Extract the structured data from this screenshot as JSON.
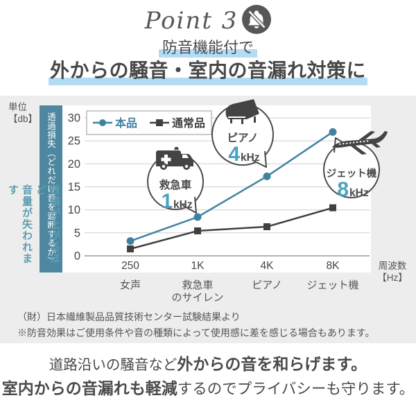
{
  "point_label": "Point 3",
  "header": {
    "subtitle": "防音機能付で",
    "title": "外からの騒音・室内の音漏れ対策に"
  },
  "axis_unit": {
    "line1": "単位",
    "line2": "【db】"
  },
  "ybar_label": "透過損失（どれだけ音を遮断するか）",
  "left_note": {
    "line1": "数値が上がるほど",
    "line2": "音量が失われます"
  },
  "freq_label": {
    "line1": "周波数",
    "line2": "【Hz】"
  },
  "chart_data": {
    "type": "line",
    "title": "",
    "xlabel": "周波数【Hz】",
    "ylabel": "透過損失【db】",
    "x": [
      "250",
      "1K",
      "4K",
      "8K"
    ],
    "x_categories": [
      [
        "女声"
      ],
      [
        "救急車",
        "のサイレン"
      ],
      [
        "ピアノ"
      ],
      [
        "ジェット機"
      ]
    ],
    "yticks": [
      0,
      5,
      10,
      15,
      20,
      25,
      30
    ],
    "ylim": [
      0,
      30
    ],
    "grid": true,
    "legend_position": "top-left",
    "series": [
      {
        "name": "本品",
        "color": "#3f82a0",
        "marker": "circle",
        "values": [
          3.2,
          8.4,
          17.2,
          26.8
        ]
      },
      {
        "name": "通常品",
        "color": "#404040",
        "marker": "square",
        "values": [
          1.5,
          5.4,
          6.3,
          10.4
        ]
      }
    ]
  },
  "callouts": [
    {
      "name": "救急車",
      "freq": "1",
      "unit": "kHz",
      "icon": "ambulance-icon"
    },
    {
      "name": "ピアノ",
      "freq": "4",
      "unit": "kHz",
      "icon": "piano-icon"
    },
    {
      "name": "ジェット機",
      "freq": "8",
      "unit": "kHz",
      "icon": "jet-icon"
    }
  ],
  "notes": {
    "line1": "（財）日本繊維製品品質技術センター試験結果より",
    "line2": "※防音効果はご使用条件や音の種類によって使用感に差を感じる場合もあります。"
  },
  "bottom": {
    "line1_normal": "道路沿いの騒音など",
    "line1_bold": "外からの音を和らげます。",
    "line2_bold": "室内からの音漏れも軽減",
    "line2_normal": "するのでプライバシーも守ります。"
  },
  "colors": {
    "accent_teal": "#3f82a0",
    "number_teal": "#4ba2c2",
    "bar_teal": "#4e87a0",
    "left_note_teal": "#5f9db3",
    "dark_text": "#4a4a4a",
    "highlight_blue": "#b3dcf4",
    "background_gray": "#ededed"
  }
}
